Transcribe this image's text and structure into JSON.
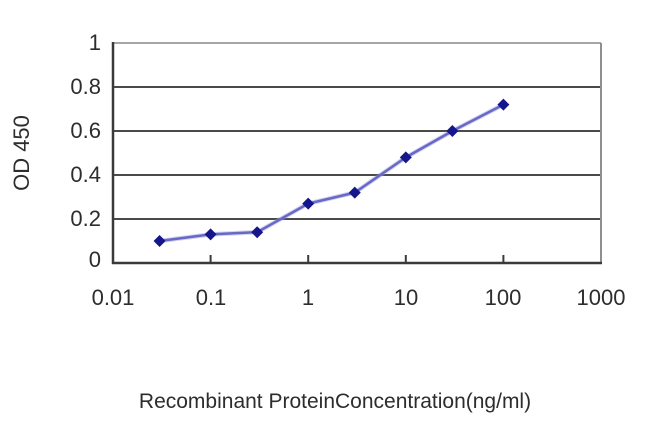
{
  "chart_data": {
    "type": "line",
    "title": "",
    "xlabel": "Recombinant ProteinConcentration(ng/ml)",
    "ylabel": "OD 450",
    "x_scale": "log",
    "xlim": [
      0.01,
      1000
    ],
    "ylim": [
      0,
      1
    ],
    "x_ticks": [
      "0.01",
      "0.1",
      "1",
      "10",
      "100",
      "1000"
    ],
    "y_ticks": [
      "1",
      "0.8",
      "0.6",
      "0.4",
      "0.2",
      "0"
    ],
    "grid": "horizontal",
    "legend": "none",
    "series": [
      {
        "name": "OD 450",
        "x": [
          0.03,
          0.1,
          0.3,
          1,
          3,
          10,
          30,
          100
        ],
        "y": [
          0.1,
          0.13,
          0.14,
          0.27,
          0.32,
          0.48,
          0.6,
          0.72
        ],
        "marker": "diamond"
      }
    ]
  },
  "colors": {
    "background": "#ffffff",
    "text": "#2d2d2d",
    "grid": "#4a4a4a",
    "axis": "#3a3a3a",
    "border_top": "#a6a6a6",
    "border_right": "#8f8f8f",
    "line": "#6868c8",
    "line_halo": "#9b9bd9",
    "marker": "#15158c"
  }
}
